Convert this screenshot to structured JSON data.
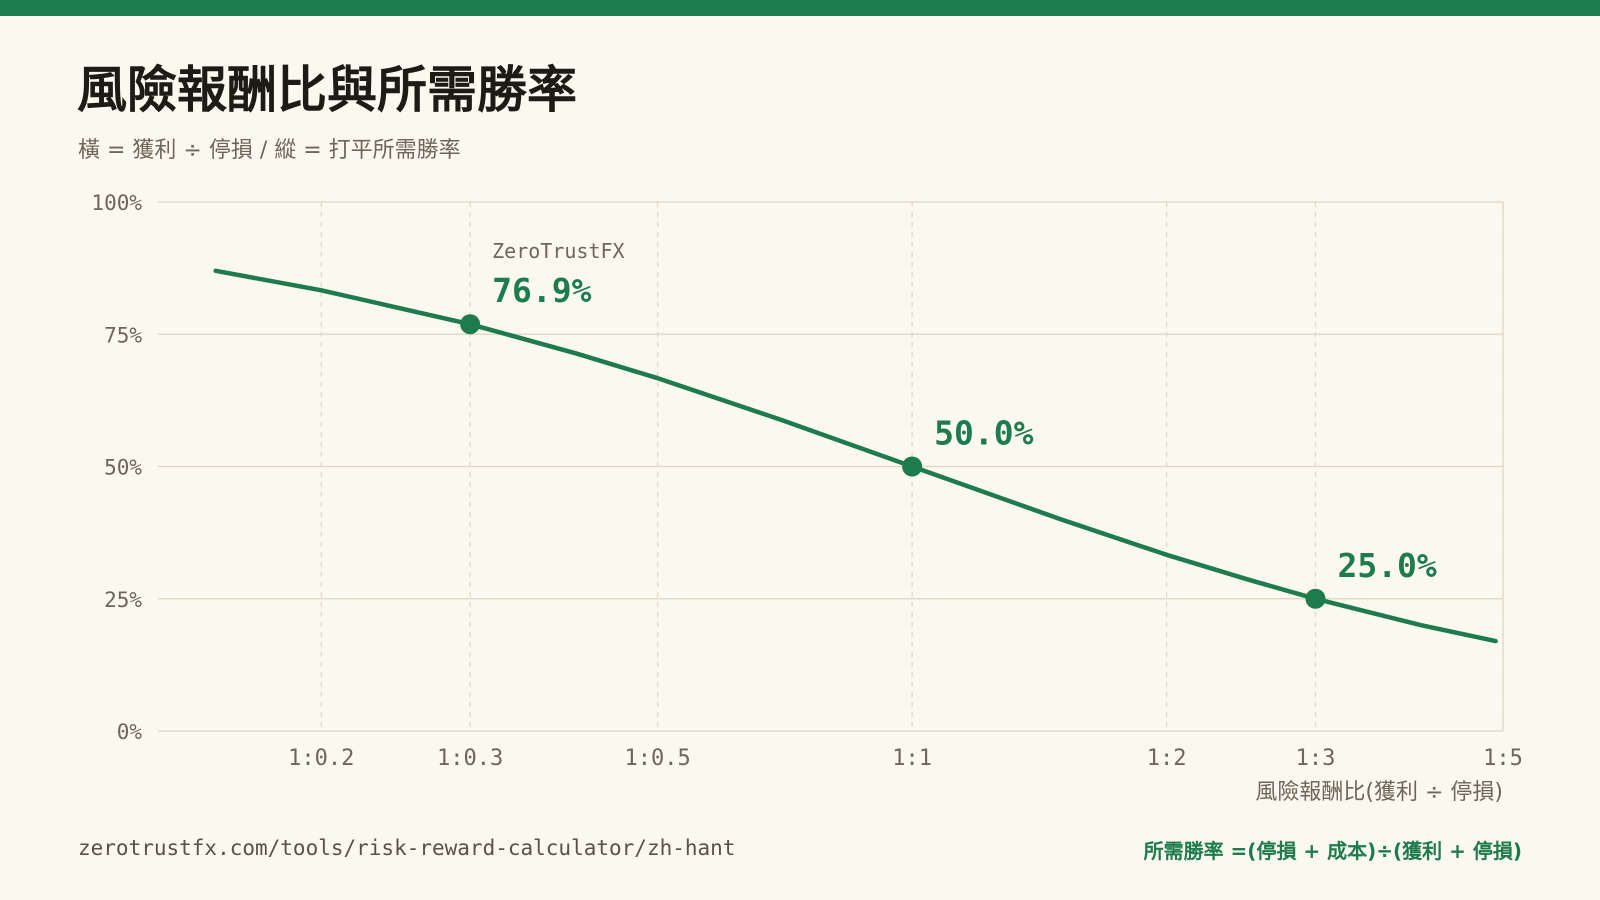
{
  "header": {
    "title": "風險報酬比與所需勝率",
    "subtitle": "橫 = 獲利 ÷ 停損 / 縱 = 打平所需勝率"
  },
  "footer": {
    "url": "zerotrustfx.com/tools/risk-reward-calculator/zh-hant",
    "formula": "所需勝率 =(停損 + 成本)÷(獲利 + 停損)"
  },
  "colors": {
    "accent": "#1e7b4d",
    "background": "#fbf8ef",
    "grid": "#ddd6c4",
    "text_muted": "#6e665a"
  },
  "chart_data": {
    "type": "line",
    "x_scale": "log",
    "xlim": [
      0.1282,
      5
    ],
    "ylim": [
      0,
      100
    ],
    "y_ticks": [
      0,
      25,
      50,
      75,
      100
    ],
    "y_tick_labels": [
      "0%",
      "25%",
      "50%",
      "75%",
      "100%"
    ],
    "x_ticks": [
      0.2,
      0.3,
      0.5,
      1,
      2,
      3,
      5
    ],
    "x_tick_labels": [
      "1:0.2",
      "1:0.3",
      "1:0.5",
      "1:1",
      "1:2",
      "1:3",
      "1:5"
    ],
    "xlabel": "風險報酬比(獲利 ÷ 停損)",
    "ylabel": "",
    "grid": true,
    "series": [
      {
        "x": [
          0.15,
          0.2,
          0.3,
          0.4,
          0.5,
          0.7,
          1,
          1.5,
          2,
          2.5,
          3,
          4,
          4.9
        ],
        "y": [
          87.0,
          83.3,
          76.9,
          71.4,
          66.7,
          58.8,
          50.0,
          40.0,
          33.3,
          28.6,
          25.0,
          20.0,
          17.0
        ]
      }
    ],
    "highlights": [
      {
        "x": 0.3,
        "y": 76.9,
        "label": "76.9%",
        "caption": "ZeroTrustFX"
      },
      {
        "x": 1,
        "y": 50.0,
        "label": "50.0%"
      },
      {
        "x": 3,
        "y": 25.0,
        "label": "25.0%"
      }
    ]
  }
}
